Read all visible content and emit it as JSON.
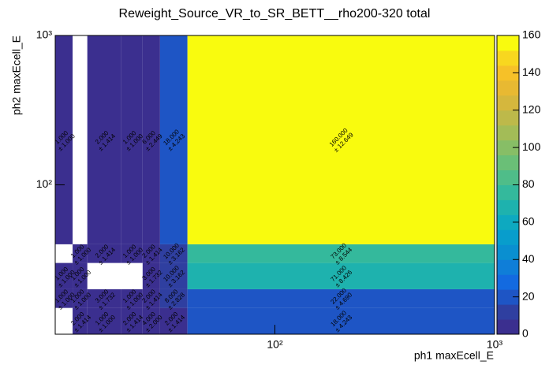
{
  "chart_data": {
    "type": "heatmap",
    "title": "Reweight_Source_VR_to_SR_BETT__rho200-320 total",
    "x_label": "ph1 maxEcell_E",
    "y_label": "ph2 maxEcell_E",
    "log_x": true,
    "log_y": true,
    "xlim": [
      10,
      1000
    ],
    "ylim": [
      10,
      1000
    ],
    "xticks": [
      {
        "value": 100,
        "label": "10²"
      },
      {
        "value": 1000,
        "label": "10³"
      }
    ],
    "yticks": [
      {
        "value": 100,
        "label": "10²"
      },
      {
        "value": 1000,
        "label": "10³"
      }
    ],
    "x_edges": [
      10,
      12,
      14,
      20,
      25,
      30,
      40,
      1000
    ],
    "y_edges": [
      10,
      15,
      20,
      30,
      40,
      1000
    ],
    "values": [
      [
        null,
        2,
        1,
        2,
        4,
        2,
        18
      ],
      [
        1,
        1,
        3,
        1,
        2,
        8,
        22
      ],
      [
        1,
        1,
        null,
        null,
        3,
        10,
        71
      ],
      [
        null,
        1,
        2,
        1,
        2,
        10,
        73
      ],
      [
        1,
        null,
        2,
        1,
        6,
        18,
        160
      ]
    ],
    "value_labels": [
      [
        null,
        "2.000",
        "1.000",
        "2.000",
        "4.000",
        "2.000",
        "18.000"
      ],
      [
        "1.000",
        "1.000",
        "3.000",
        "1.000",
        "2.000",
        "8.000",
        "22.000"
      ],
      [
        "1.000",
        "1.000",
        null,
        null,
        "3.000",
        "10.000",
        "71.000"
      ],
      [
        null,
        "1.000",
        "2.000",
        "1.000",
        "2.000",
        "10.000",
        "73.000"
      ],
      [
        "1.000",
        null,
        "2.000",
        "1.000",
        "6.000",
        "18.000",
        "160.000"
      ]
    ],
    "errors": [
      [
        null,
        1.414,
        1,
        1.414,
        2,
        1.414,
        4.243
      ],
      [
        1,
        1,
        1.732,
        1,
        1.414,
        2.828,
        4.69
      ],
      [
        1,
        1,
        null,
        null,
        1.732,
        3.162,
        8.426
      ],
      [
        null,
        1,
        1.414,
        1,
        1.414,
        3.162,
        8.544
      ],
      [
        1,
        null,
        1.414,
        1,
        2.449,
        4.243,
        12.649
      ]
    ],
    "error_labels": [
      [
        null,
        "± 1.414",
        "± 1.000",
        "± 1.414",
        "± 2.000",
        "± 1.414",
        "± 4.243"
      ],
      [
        "± 1.000",
        "± 1.000",
        "± 1.732",
        "± 1.000",
        "± 1.414",
        "± 2.828",
        "± 4.690"
      ],
      [
        "± 1.000",
        "± 1.000",
        null,
        null,
        "± 1.732",
        "± 3.162",
        "± 8.426"
      ],
      [
        null,
        "± 1.000",
        "± 1.414",
        "± 1.000",
        "± 1.414",
        "± 3.162",
        "± 8.544"
      ],
      [
        "± 1.000",
        null,
        "± 1.414",
        "± 1.000",
        "± 2.449",
        "± 4.243",
        "± 12.649"
      ]
    ],
    "zlim": [
      0,
      160
    ],
    "zticks": [
      0,
      20,
      40,
      60,
      80,
      100,
      120,
      140,
      160
    ],
    "palette": [
      "#3b2f8f",
      "#2f3fa0",
      "#1e55c5",
      "#136ae0",
      "#0f7ed8",
      "#0a8fd0",
      "#089dcc",
      "#0ea9c0",
      "#1eb2ae",
      "#34b99c",
      "#4fbd89",
      "#6abf77",
      "#87be66",
      "#a3bc57",
      "#bdb94a",
      "#d5b73d",
      "#e8b932",
      "#f6c128",
      "#f8d71f",
      "#f9fb0e"
    ]
  }
}
